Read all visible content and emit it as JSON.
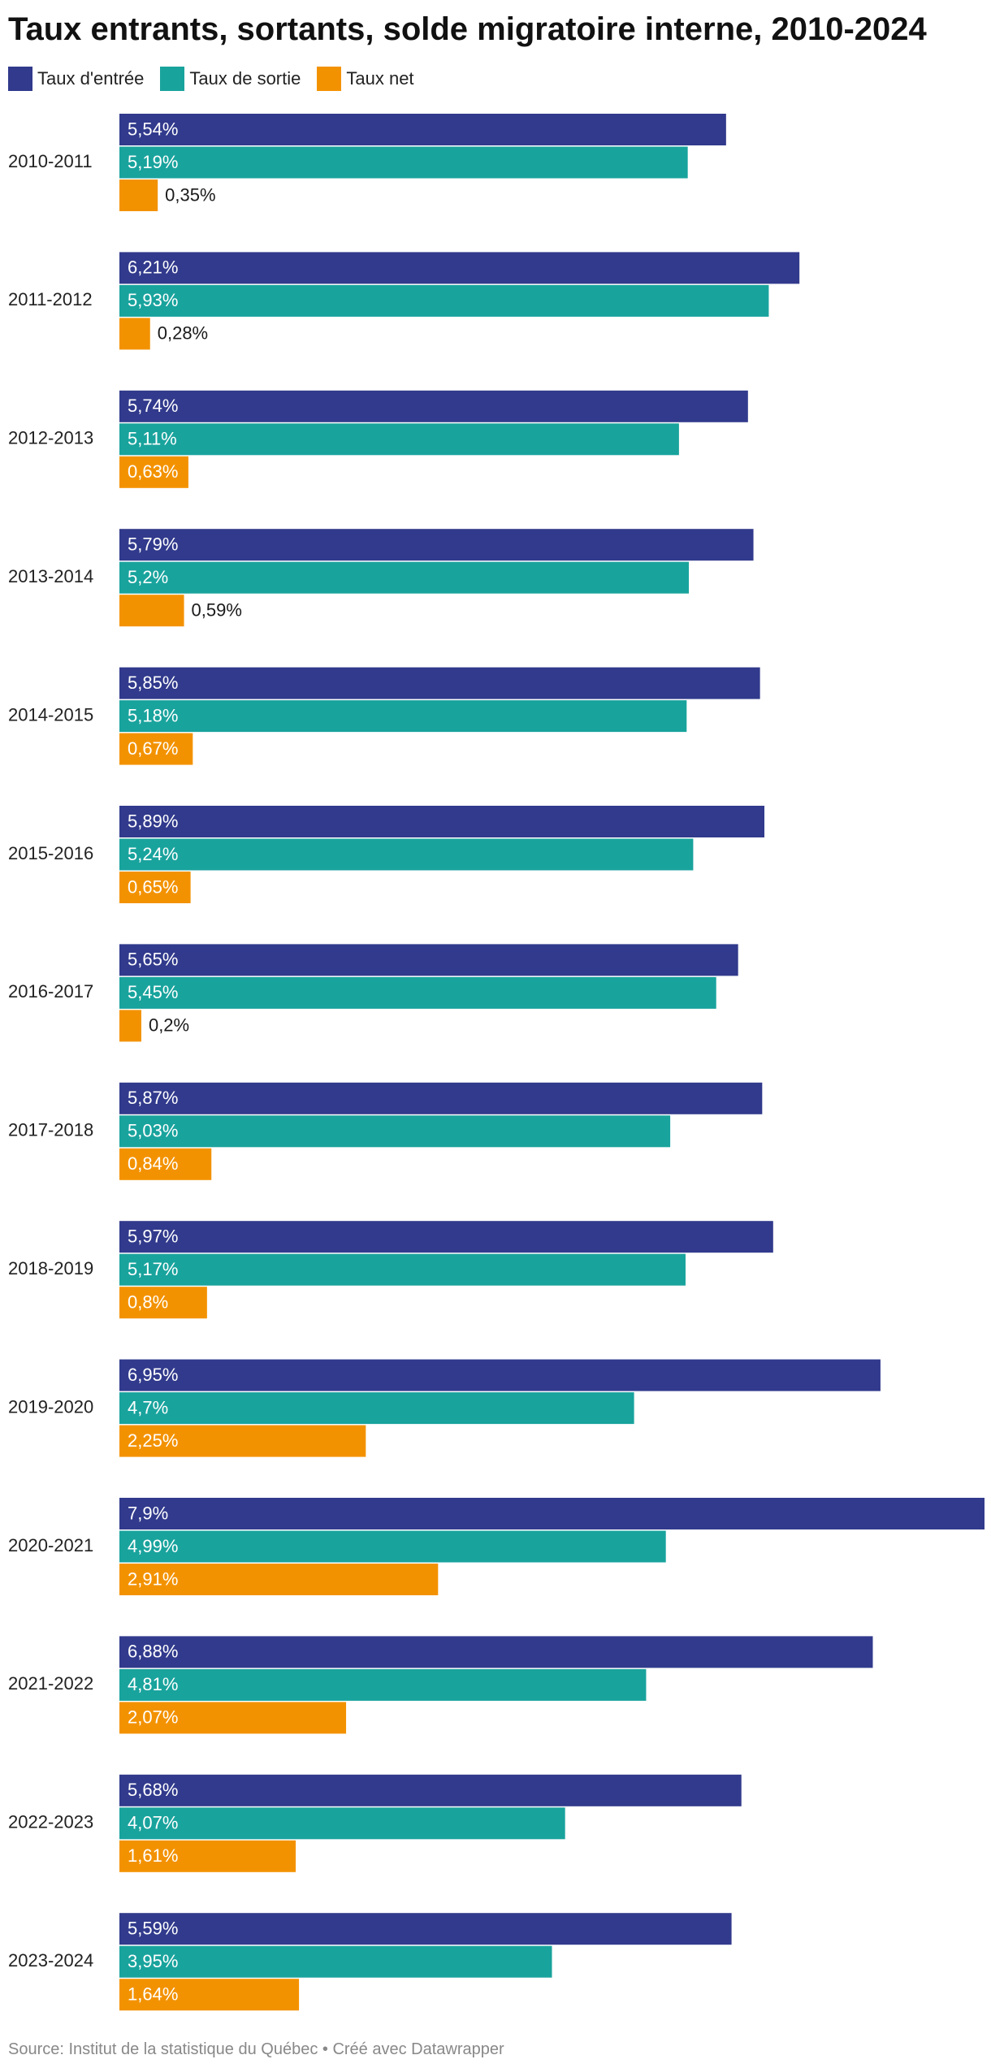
{
  "chart_data": {
    "type": "bar",
    "orientation": "horizontal",
    "title": "Taux entrants, sortants, solde migratoire interne, 2010-2024",
    "categories": [
      "2010-2011",
      "2011-2012",
      "2012-2013",
      "2013-2014",
      "2014-2015",
      "2015-2016",
      "2016-2017",
      "2017-2018",
      "2018-2019",
      "2019-2020",
      "2020-2021",
      "2021-2022",
      "2022-2023",
      "2023-2024"
    ],
    "series": [
      {
        "name": "Taux d'entrée",
        "color": "#313a8c",
        "values": [
          5.54,
          6.21,
          5.74,
          5.79,
          5.85,
          5.89,
          5.65,
          5.87,
          5.97,
          6.95,
          7.9,
          6.88,
          5.68,
          5.59
        ],
        "labels": [
          "5,54%",
          "6,21%",
          "5,74%",
          "5,79%",
          "5,85%",
          "5,89%",
          "5,65%",
          "5,87%",
          "5,97%",
          "6,95%",
          "7,9%",
          "6,88%",
          "5,68%",
          "5,59%"
        ]
      },
      {
        "name": "Taux de sortie",
        "color": "#19a39d",
        "values": [
          5.19,
          5.93,
          5.11,
          5.2,
          5.18,
          5.24,
          5.45,
          5.03,
          5.17,
          4.7,
          4.99,
          4.81,
          4.07,
          3.95
        ],
        "labels": [
          "5,19%",
          "5,93%",
          "5,11%",
          "5,2%",
          "5,18%",
          "5,24%",
          "5,45%",
          "5,03%",
          "5,17%",
          "4,7%",
          "4,99%",
          "4,81%",
          "4,07%",
          "3,95%"
        ]
      },
      {
        "name": "Taux net",
        "color": "#f39200",
        "values": [
          0.35,
          0.28,
          0.63,
          0.59,
          0.67,
          0.65,
          0.2,
          0.84,
          0.8,
          2.25,
          2.91,
          2.07,
          1.61,
          1.64
        ],
        "labels": [
          "0,35%",
          "0,28%",
          "0,63%",
          "0,59%",
          "0,67%",
          "0,65%",
          "0,2%",
          "0,84%",
          "0,8%",
          "2,25%",
          "2,91%",
          "2,07%",
          "1,61%",
          "1,64%"
        ]
      }
    ],
    "xlim": [
      0,
      7.9
    ],
    "grid": false,
    "legend_position": "top-left",
    "source": "Source: Institut de la statistique du Québec • Créé avec Datawrapper"
  }
}
